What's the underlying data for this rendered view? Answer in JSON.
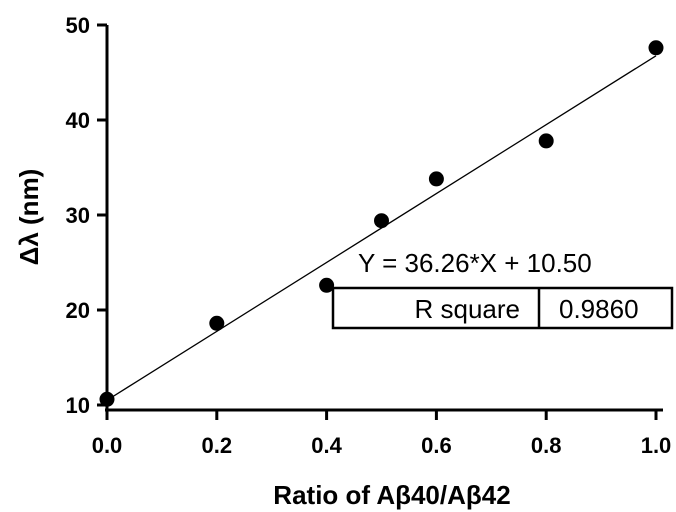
{
  "chart_data": {
    "type": "scatter",
    "xlabel": "Ratio of Aβ40/Aβ42",
    "ylabel": "Δλ (nm)",
    "xlim": [
      0.0,
      1.0
    ],
    "ylim": [
      10,
      50
    ],
    "xticks": [
      "0.0",
      "0.2",
      "0.4",
      "0.6",
      "0.8",
      "1.0"
    ],
    "yticks": [
      "10",
      "20",
      "30",
      "40",
      "50"
    ],
    "series": [
      {
        "x": [
          0.0,
          0.2,
          0.4,
          0.5,
          0.6,
          0.8,
          1.0
        ],
        "y": [
          10.6,
          18.6,
          22.6,
          29.4,
          33.8,
          37.8,
          47.6
        ]
      }
    ],
    "fit": {
      "slope": 36.26,
      "intercept": 10.5
    },
    "equation": "Y = 36.26*X + 10.50",
    "r_square_label": "R square",
    "r_square_value": "0.9860",
    "grid": false
  }
}
